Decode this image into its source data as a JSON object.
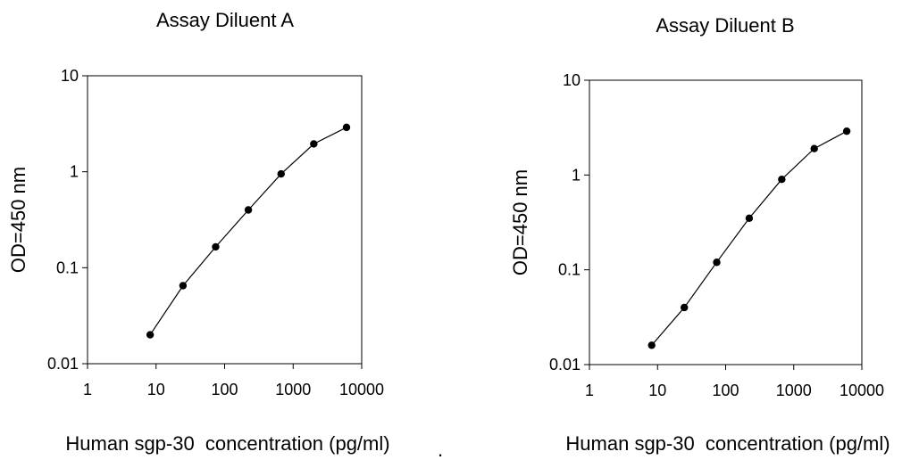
{
  "chart_data": [
    {
      "type": "line",
      "title": "Assay Diluent A",
      "xlabel": "Human sgp-30  concentration (pg/ml)",
      "ylabel": "OD=450 nm",
      "x_scale": "log",
      "y_scale": "log",
      "xlim": [
        1,
        10000
      ],
      "ylim": [
        0.01,
        10
      ],
      "x_ticks": [
        "1",
        "10",
        "100",
        "1000",
        "10000"
      ],
      "y_ticks": [
        "0.01",
        "0.1",
        "1",
        "10"
      ],
      "grid": false,
      "x": [
        8.2,
        24.7,
        74,
        222,
        667,
        2000,
        6000
      ],
      "y": [
        0.02,
        0.065,
        0.165,
        0.4,
        0.95,
        1.95,
        2.9
      ]
    },
    {
      "type": "line",
      "title": "Assay Diluent B",
      "xlabel": "Human sgp-30  concentration (pg/ml)",
      "ylabel": "OD=450 nm",
      "x_scale": "log",
      "y_scale": "log",
      "xlim": [
        1,
        10000
      ],
      "ylim": [
        0.01,
        10
      ],
      "x_ticks": [
        "1",
        "10",
        "100",
        "1000",
        "10000"
      ],
      "y_ticks": [
        "0.01",
        "0.1",
        "1",
        "10"
      ],
      "grid": false,
      "x": [
        8.2,
        24.7,
        74,
        222,
        667,
        2000,
        6000
      ],
      "y": [
        0.016,
        0.04,
        0.12,
        0.35,
        0.9,
        1.9,
        2.9
      ]
    }
  ],
  "footer_mark": "."
}
